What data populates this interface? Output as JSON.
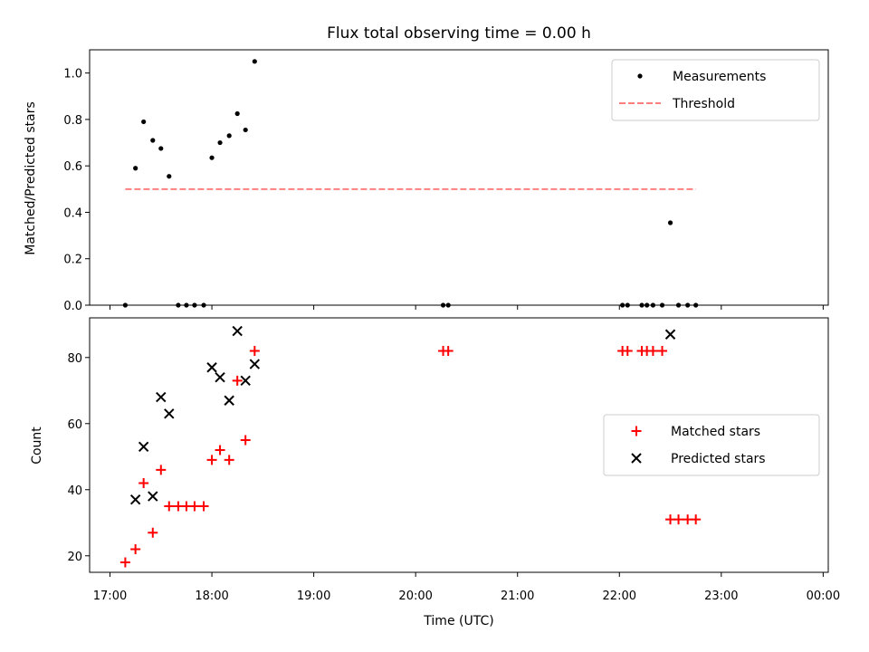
{
  "chart_data": [
    {
      "type": "scatter",
      "title": "Flux total observing time = 0.00 h",
      "ylabel": "Matched/Predicted stars",
      "xlabel": "",
      "x_units": "hours since 17:00 UTC",
      "xlim": [
        0.0,
        7.0
      ],
      "ylim": [
        0.0,
        1.1
      ],
      "yticks": [
        0.0,
        0.2,
        0.4,
        0.6,
        0.8,
        1.0
      ],
      "ytick_labels": [
        "0.0",
        "0.2",
        "0.4",
        "0.6",
        "0.8",
        "1.0"
      ],
      "legend_position": "top-right",
      "series": [
        {
          "name": "Measurements",
          "marker": "dot",
          "color": "#000000",
          "points": [
            [
              0.15,
              0.0
            ],
            [
              0.25,
              0.59
            ],
            [
              0.33,
              0.79
            ],
            [
              0.42,
              0.71
            ],
            [
              0.5,
              0.675
            ],
            [
              0.58,
              0.555
            ],
            [
              0.67,
              0.0
            ],
            [
              0.75,
              0.0
            ],
            [
              0.83,
              0.0
            ],
            [
              0.92,
              0.0
            ],
            [
              1.0,
              0.635
            ],
            [
              1.08,
              0.7
            ],
            [
              1.17,
              0.73
            ],
            [
              1.25,
              0.825
            ],
            [
              1.33,
              0.755
            ],
            [
              1.42,
              1.05
            ],
            [
              3.27,
              0.0
            ],
            [
              3.32,
              0.0
            ],
            [
              5.03,
              0.0
            ],
            [
              5.08,
              0.0
            ],
            [
              5.22,
              0.0
            ],
            [
              5.27,
              0.0
            ],
            [
              5.33,
              0.0
            ],
            [
              5.42,
              0.0
            ],
            [
              5.5,
              0.355
            ],
            [
              5.58,
              0.0
            ],
            [
              5.67,
              0.0
            ],
            [
              5.75,
              0.0
            ]
          ]
        },
        {
          "name": "Threshold",
          "style": "dashed",
          "color": "#ff7f7f",
          "points": [
            [
              0.15,
              0.5
            ],
            [
              5.75,
              0.5
            ]
          ]
        }
      ]
    },
    {
      "type": "scatter",
      "title": "",
      "xlabel": "Time (UTC)",
      "ylabel": "Count",
      "x_units": "hours since 17:00 UTC",
      "xlim": [
        -0.2,
        7.05
      ],
      "ylim": [
        15,
        92
      ],
      "xticks": [
        0,
        1,
        2,
        3,
        4,
        5,
        6,
        7
      ],
      "xtick_labels": [
        "17:00",
        "18:00",
        "19:00",
        "20:00",
        "21:00",
        "22:00",
        "23:00",
        "00:00"
      ],
      "yticks": [
        20,
        40,
        60,
        80
      ],
      "ytick_labels": [
        "20",
        "40",
        "60",
        "80"
      ],
      "legend_position": "center-right",
      "series": [
        {
          "name": "Matched stars",
          "marker": "plus",
          "color": "#ff0000",
          "points": [
            [
              0.15,
              18
            ],
            [
              0.25,
              22
            ],
            [
              0.33,
              42
            ],
            [
              0.42,
              27
            ],
            [
              0.5,
              46
            ],
            [
              0.58,
              35
            ],
            [
              0.67,
              35
            ],
            [
              0.75,
              35
            ],
            [
              0.83,
              35
            ],
            [
              0.92,
              35
            ],
            [
              1.0,
              49
            ],
            [
              1.08,
              52
            ],
            [
              1.17,
              49
            ],
            [
              1.25,
              73
            ],
            [
              1.33,
              55
            ],
            [
              1.42,
              82
            ],
            [
              3.27,
              82
            ],
            [
              3.32,
              82
            ],
            [
              5.03,
              82
            ],
            [
              5.08,
              82
            ],
            [
              5.22,
              82
            ],
            [
              5.27,
              82
            ],
            [
              5.33,
              82
            ],
            [
              5.42,
              82
            ],
            [
              5.5,
              31
            ],
            [
              5.58,
              31
            ],
            [
              5.67,
              31
            ],
            [
              5.75,
              31
            ]
          ]
        },
        {
          "name": "Predicted stars",
          "marker": "x",
          "color": "#000000",
          "points": [
            [
              0.25,
              37
            ],
            [
              0.33,
              53
            ],
            [
              0.42,
              38
            ],
            [
              0.5,
              68
            ],
            [
              0.58,
              63
            ],
            [
              1.0,
              77
            ],
            [
              1.08,
              74
            ],
            [
              1.17,
              67
            ],
            [
              1.25,
              88
            ],
            [
              1.33,
              73
            ],
            [
              1.42,
              78
            ],
            [
              5.5,
              87
            ]
          ]
        }
      ]
    }
  ]
}
